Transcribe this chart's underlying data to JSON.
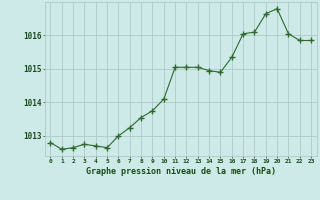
{
  "hours": [
    0,
    1,
    2,
    3,
    4,
    5,
    6,
    7,
    8,
    9,
    10,
    11,
    12,
    13,
    14,
    15,
    16,
    17,
    18,
    19,
    20,
    21,
    22,
    23
  ],
  "pressure": [
    1012.8,
    1012.6,
    1012.65,
    1012.75,
    1012.7,
    1012.65,
    1013.0,
    1013.25,
    1013.55,
    1013.75,
    1014.1,
    1015.05,
    1015.05,
    1015.05,
    1014.95,
    1014.9,
    1015.35,
    1016.05,
    1016.1,
    1016.65,
    1016.8,
    1016.05,
    1015.85,
    1015.85
  ],
  "line_color": "#2d6a2d",
  "marker_color": "#2d6a2d",
  "bg_color": "#ceeae8",
  "grid_color": "#b0c8c8",
  "xlabel": "Graphe pression niveau de la mer (hPa)",
  "xlabel_color": "#1a4a1a",
  "tick_label_color": "#1a4a1a",
  "ylim": [
    1012.4,
    1017.0
  ],
  "yticks": [
    1013,
    1014,
    1015,
    1016
  ],
  "figsize": [
    3.2,
    2.0
  ],
  "dpi": 100
}
